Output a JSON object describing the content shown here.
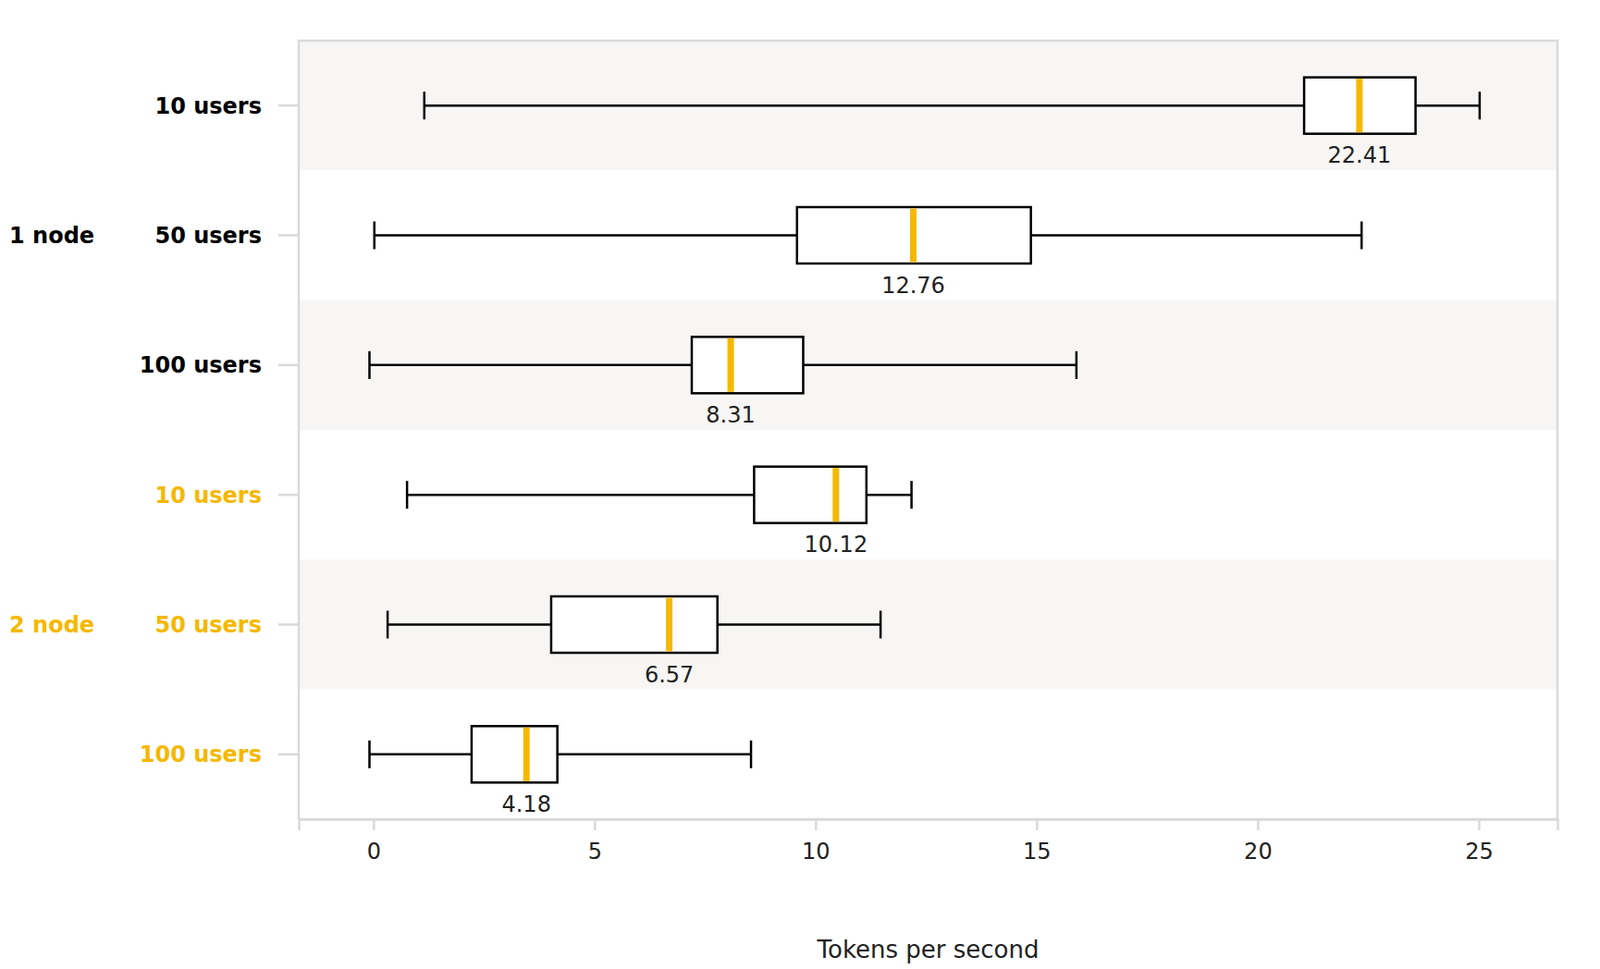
{
  "chart_data": {
    "type": "box",
    "orientation": "horizontal",
    "x_label": "Tokens per second",
    "xlim": [
      -1.69,
      26.78
    ],
    "xticks": [
      0,
      5,
      10,
      15,
      20,
      25
    ],
    "grid": false,
    "color": "#f5b800",
    "categories": [
      "10 users",
      "50 users",
      "100 users"
    ],
    "series": [
      {
        "name": "1 node",
        "color": "#000000",
        "low": [
          1.15,
          0.02,
          -0.09
        ],
        "q1": [
          21.05,
          9.58,
          7.2
        ],
        "median": [
          22.3,
          12.21,
          8.08
        ],
        "q3": [
          23.57,
          14.87,
          9.72
        ],
        "high": [
          25.02,
          22.35,
          15.9
        ],
        "labels": [
          22.41,
          12.76,
          8.31
        ]
      },
      {
        "name": "2 node",
        "color": "#f5b800",
        "low": [
          0.76,
          0.32,
          -0.09
        ],
        "q1": [
          8.61,
          4.02,
          2.22
        ],
        "median": [
          10.46,
          6.69,
          3.46
        ],
        "q3": [
          11.15,
          7.78,
          4.16
        ],
        "high": [
          12.17,
          11.47,
          8.54
        ],
        "labels": [
          10.12,
          6.57,
          4.18
        ]
      }
    ]
  }
}
